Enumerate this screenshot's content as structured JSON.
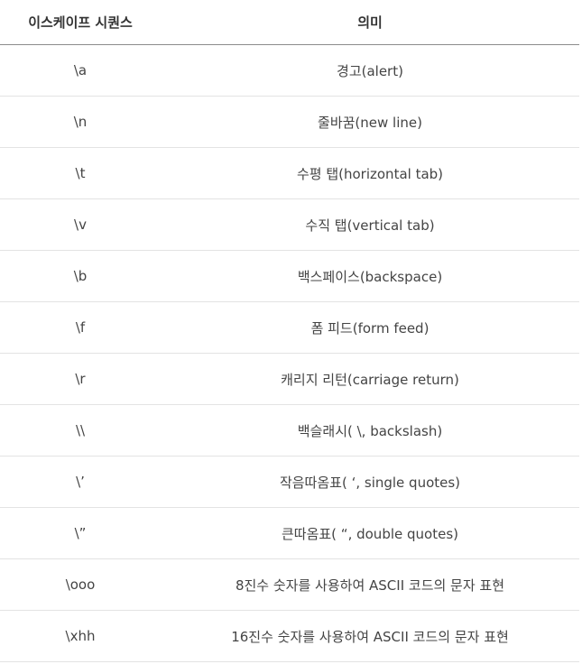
{
  "table": {
    "headers": {
      "sequence": "이스케이프 시퀀스",
      "meaning": "의미"
    },
    "rows": [
      {
        "sequence": "\\a",
        "meaning": "경고(alert)"
      },
      {
        "sequence": "\\n",
        "meaning": "줄바꿈(new line)"
      },
      {
        "sequence": "\\t",
        "meaning": "수평 탭(horizontal tab)"
      },
      {
        "sequence": "\\v",
        "meaning": "수직 탭(vertical tab)"
      },
      {
        "sequence": "\\b",
        "meaning": "백스페이스(backspace)"
      },
      {
        "sequence": "\\f",
        "meaning": "폼 피드(form feed)"
      },
      {
        "sequence": "\\r",
        "meaning": "캐리지 리턴(carriage return)"
      },
      {
        "sequence": "\\\\",
        "meaning": "백슬래시( \\, backslash)"
      },
      {
        "sequence": "\\’",
        "meaning": "작음따옴표( ‘, single quotes)"
      },
      {
        "sequence": "\\”",
        "meaning": "큰따옴표( “, double quotes)"
      },
      {
        "sequence": "\\ooo",
        "meaning": "8진수 숫자를 사용하여 ASCII 코드의 문자 표현"
      },
      {
        "sequence": "\\xhh",
        "meaning": "16진수 숫자를 사용하여 ASCII 코드의 문자 표현"
      }
    ]
  }
}
